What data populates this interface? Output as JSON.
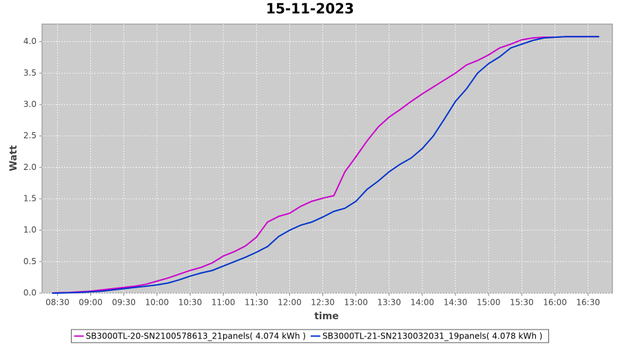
{
  "chart_data": {
    "type": "line",
    "title": "15-11-2023",
    "x_label": "time",
    "y_label": "Watt",
    "x": [
      "08:25",
      "08:30",
      "08:40",
      "08:50",
      "09:00",
      "09:10",
      "09:20",
      "09:30",
      "09:40",
      "09:50",
      "10:00",
      "10:10",
      "10:20",
      "10:30",
      "10:40",
      "10:50",
      "11:00",
      "11:10",
      "11:20",
      "11:30",
      "11:40",
      "11:50",
      "12:00",
      "12:10",
      "12:20",
      "12:30",
      "12:40",
      "12:50",
      "13:00",
      "13:10",
      "13:20",
      "13:30",
      "13:40",
      "13:50",
      "14:00",
      "14:10",
      "14:20",
      "14:30",
      "14:40",
      "14:50",
      "15:00",
      "15:10",
      "15:20",
      "15:30",
      "15:40",
      "15:50",
      "16:00",
      "16:10",
      "16:20",
      "16:30",
      "16:40"
    ],
    "series": [
      {
        "name": "SB3000TL-20-SN2100578613_21panels( 4.074 kWh )",
        "color": "#cc00cc",
        "values": [
          0,
          0.005,
          0.01,
          0.02,
          0.03,
          0.05,
          0.07,
          0.09,
          0.11,
          0.14,
          0.19,
          0.24,
          0.3,
          0.36,
          0.41,
          0.48,
          0.59,
          0.66,
          0.75,
          0.89,
          1.13,
          1.22,
          1.27,
          1.38,
          1.46,
          1.51,
          1.55,
          1.93,
          2.17,
          2.42,
          2.64,
          2.8,
          2.92,
          3.05,
          3.17,
          3.28,
          3.39,
          3.5,
          3.63,
          3.7,
          3.79,
          3.9,
          3.96,
          4.03,
          4.06,
          4.07,
          4.07,
          4.08,
          4.08,
          4.08,
          4.08
        ]
      },
      {
        "name": "SB3000TL-21-SN2130032031_19panels( 4.078 kWh )",
        "color": "#0033cc",
        "values": [
          0,
          0,
          0.005,
          0.01,
          0.02,
          0.03,
          0.05,
          0.07,
          0.09,
          0.11,
          0.13,
          0.16,
          0.21,
          0.27,
          0.32,
          0.36,
          0.43,
          0.5,
          0.57,
          0.65,
          0.74,
          0.9,
          1.0,
          1.08,
          1.13,
          1.21,
          1.3,
          1.35,
          1.46,
          1.65,
          1.78,
          1.93,
          2.05,
          2.15,
          2.3,
          2.5,
          2.77,
          3.05,
          3.25,
          3.5,
          3.65,
          3.76,
          3.9,
          3.96,
          4.02,
          4.06,
          4.07,
          4.08,
          4.08,
          4.08,
          4.08
        ]
      }
    ],
    "xlim": [
      "08:16",
      "16:52"
    ],
    "xticks": [
      "08:30",
      "09:00",
      "09:30",
      "10:00",
      "10:30",
      "11:00",
      "11:30",
      "12:00",
      "12:30",
      "13:00",
      "13:30",
      "14:00",
      "14:30",
      "15:00",
      "15:30",
      "16:00",
      "16:30"
    ],
    "ylim": [
      0,
      4.28
    ],
    "yticks": [
      {
        "value": 0,
        "label": "0.0"
      },
      0.5,
      {
        "value": 1,
        "label": "1.0"
      },
      1.5,
      {
        "value": 2,
        "label": "2.0"
      },
      2.5,
      {
        "value": 3,
        "label": "3.0"
      },
      3.5,
      {
        "value": 4,
        "label": "4.0"
      }
    ],
    "grid": true,
    "legend": "bottom",
    "background": "#cccccc"
  }
}
